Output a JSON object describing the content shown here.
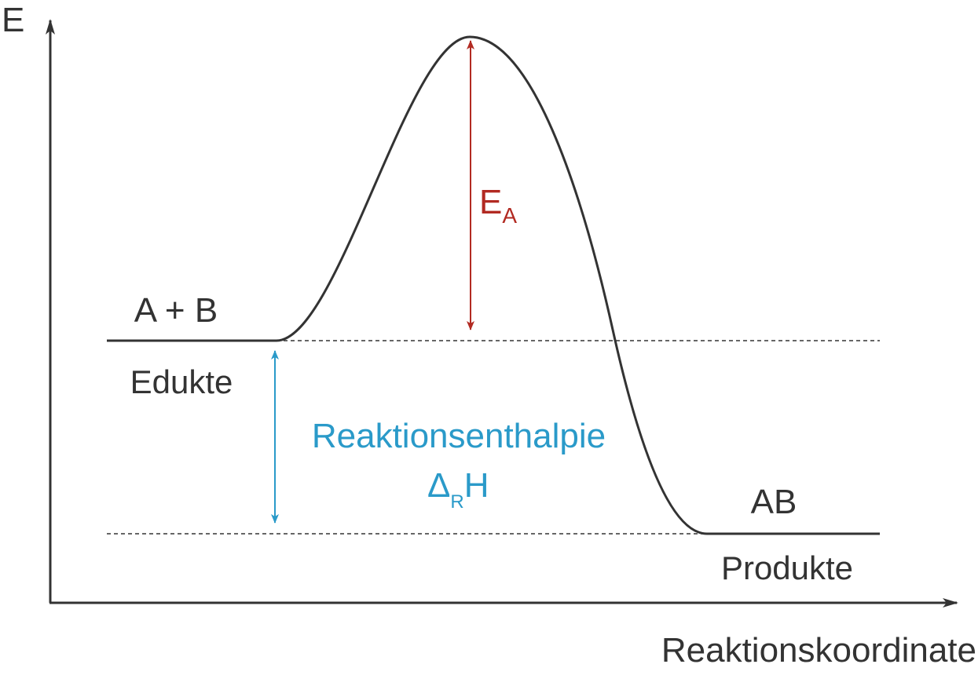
{
  "colors": {
    "curve": "#333333",
    "activation": "#b22a22",
    "enthalpy": "#2a9ac9",
    "text": "#333333"
  },
  "axes": {
    "y_label": "E",
    "x_label": "Reaktionskoordinate"
  },
  "reactants": {
    "formula": "A + B",
    "name": "Edukte"
  },
  "products": {
    "formula": "AB",
    "name": "Produkte"
  },
  "activation_energy": {
    "symbol": "E",
    "subscript": "A"
  },
  "reaction_enthalpy": {
    "name": "Reaktionsenthalpie",
    "symbol": "Δ",
    "subscript": "R",
    "suffix": "H"
  }
}
